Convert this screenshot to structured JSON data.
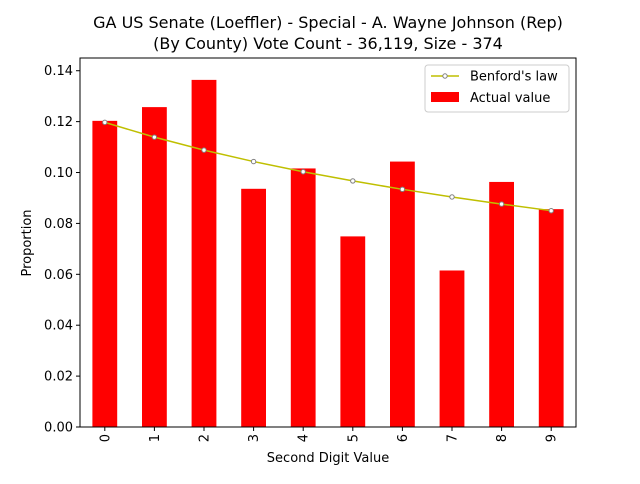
{
  "chart_data": {
    "type": "bar",
    "title_line1": "GA US Senate (Loeffler) - Special - A. Wayne Johnson (Rep)",
    "title_line2": "(By County) Vote Count - 36,119, Size - 374",
    "xlabel": "Second Digit Value",
    "ylabel": "Proportion",
    "categories": [
      "0",
      "1",
      "2",
      "3",
      "4",
      "5",
      "6",
      "7",
      "8",
      "9"
    ],
    "ylim": [
      0,
      0.145
    ],
    "yticks": [
      "0.00",
      "0.02",
      "0.04",
      "0.06",
      "0.08",
      "0.10",
      "0.12",
      "0.14"
    ],
    "ytick_values": [
      0,
      0.02,
      0.04,
      0.06,
      0.08,
      0.1,
      0.12,
      0.14
    ],
    "series": [
      {
        "name": "Actual value",
        "kind": "bar",
        "color": "#ff0000",
        "values": [
          0.1203,
          0.1257,
          0.1364,
          0.0936,
          0.1016,
          0.0749,
          0.1043,
          0.0615,
          0.0963,
          0.0856
        ]
      },
      {
        "name": "Benford's law",
        "kind": "line",
        "color": "#bfbf00",
        "values": [
          0.1197,
          0.1139,
          0.1088,
          0.1043,
          0.1003,
          0.0967,
          0.0934,
          0.0904,
          0.0876,
          0.085
        ]
      }
    ],
    "legend_position": "top-right",
    "grid": false
  }
}
